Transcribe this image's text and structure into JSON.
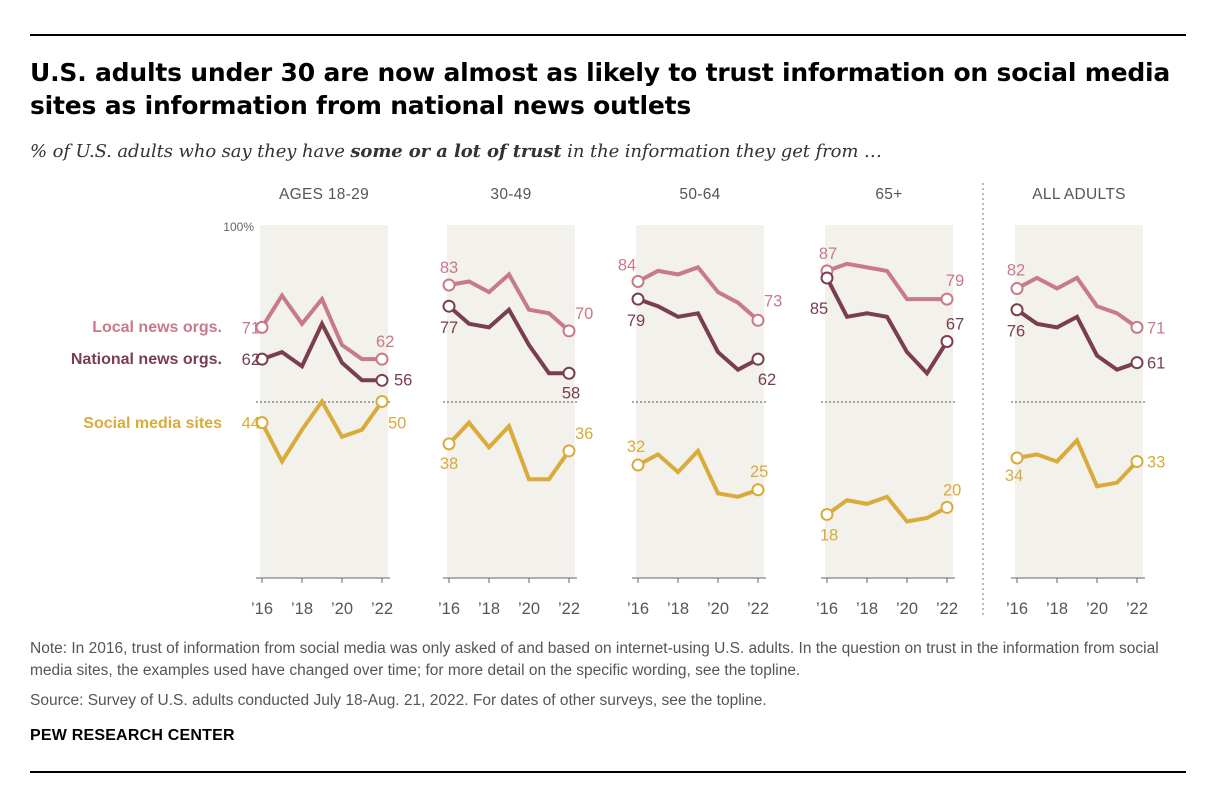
{
  "title": "U.S. adults under 30 are now almost as likely to trust information on social media sites as information from national news outlets",
  "subtitle": {
    "prefix": "% of U.S. adults who say they have ",
    "bold": "some or a lot of trust",
    "suffix": " in the information they get from …"
  },
  "colors": {
    "local": "#c8798a",
    "national": "#7a3e4f",
    "social": "#d9ab3a",
    "panel_bg": "#f2f1ec"
  },
  "chart_data": {
    "type": "line",
    "x": [
      2016,
      2017,
      2018,
      2019,
      2020,
      2021,
      2022
    ],
    "x_tick_labels": [
      "’16",
      "’18",
      "’20",
      "’22"
    ],
    "y_top_label": "100%",
    "ylim": [
      0,
      100
    ],
    "series_labels": [
      "Local news orgs.",
      "National news orgs.",
      "Social media sites"
    ],
    "panels": [
      {
        "label": "AGES 18-29",
        "series": [
          {
            "name": "Local news orgs.",
            "values": [
              71,
              80,
              72,
              79,
              66,
              62,
              62
            ]
          },
          {
            "name": "National news orgs.",
            "values": [
              62,
              64,
              60,
              72,
              61,
              56,
              56
            ]
          },
          {
            "name": "Social media sites",
            "values": [
              44,
              33,
              42,
              50,
              40,
              42,
              50
            ]
          }
        ],
        "start_labels": [
          "71",
          "62",
          "44"
        ],
        "end_labels": [
          "62",
          "56",
          "50"
        ]
      },
      {
        "label": "30-49",
        "series": [
          {
            "name": "Local news orgs.",
            "values": [
              83,
              84,
              81,
              86,
              76,
              75,
              70
            ]
          },
          {
            "name": "National news orgs.",
            "values": [
              77,
              72,
              71,
              76,
              66,
              58,
              58
            ]
          },
          {
            "name": "Social media sites",
            "values": [
              38,
              44,
              37,
              43,
              28,
              28,
              36
            ]
          }
        ],
        "start_labels": [
          "83",
          "77",
          "38"
        ],
        "end_labels": [
          "70",
          "58",
          "36"
        ]
      },
      {
        "label": "50-64",
        "series": [
          {
            "name": "Local news orgs.",
            "values": [
              84,
              87,
              86,
              88,
              81,
              78,
              73
            ]
          },
          {
            "name": "National news orgs.",
            "values": [
              79,
              77,
              74,
              75,
              64,
              59,
              62
            ]
          },
          {
            "name": "Social media sites",
            "values": [
              32,
              35,
              30,
              36,
              24,
              23,
              25
            ]
          }
        ],
        "start_labels": [
          "84",
          "79",
          "32"
        ],
        "end_labels": [
          "73",
          "62",
          "25"
        ]
      },
      {
        "label": "65+",
        "series": [
          {
            "name": "Local news orgs.",
            "values": [
              87,
              89,
              88,
              87,
              79,
              79,
              79
            ]
          },
          {
            "name": "National news orgs.",
            "values": [
              85,
              74,
              75,
              74,
              64,
              58,
              67
            ]
          },
          {
            "name": "Social media sites",
            "values": [
              18,
              22,
              21,
              23,
              16,
              17,
              20
            ]
          }
        ],
        "start_labels": [
          "87",
          "85",
          "18"
        ],
        "end_labels": [
          "79",
          "67",
          "20"
        ]
      },
      {
        "label": "ALL ADULTS",
        "series": [
          {
            "name": "Local news orgs.",
            "values": [
              82,
              85,
              82,
              85,
              77,
              75,
              71
            ]
          },
          {
            "name": "National news orgs.",
            "values": [
              76,
              72,
              71,
              74,
              63,
              59,
              61
            ]
          },
          {
            "name": "Social media sites",
            "values": [
              34,
              35,
              33,
              39,
              26,
              27,
              33
            ]
          }
        ],
        "start_labels": [
          "82",
          "76",
          "34"
        ],
        "end_labels": [
          "71",
          "61",
          "33"
        ]
      }
    ]
  },
  "notes": {
    "note": "Note: In 2016, trust of information from social media was only asked of and based on internet-using U.S. adults. In the question on trust in the information from social media sites, the examples used have changed over time; for more detail on the specific wording, see the topline.",
    "source": "Source: Survey of U.S. adults conducted July 18-Aug. 21, 2022. For dates of other surveys, see the topline."
  },
  "brand": "PEW RESEARCH CENTER"
}
